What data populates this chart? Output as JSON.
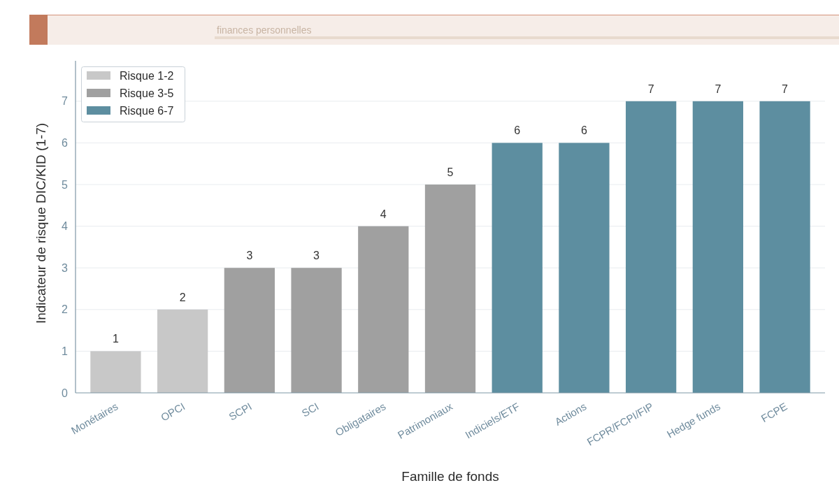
{
  "chart_data": {
    "type": "bar",
    "subtitle": "finances personnelles",
    "xlabel": "Famille de fonds",
    "ylabel": "Indicateur de risque DIC/KID (1-7)",
    "categories": [
      "Monétaires",
      "OPCI",
      "SCPI",
      "SCI",
      "Obligataires",
      "Patrimoniaux",
      "Indiciels/ETF",
      "Actions",
      "FCPR/FCPI/FIP",
      "Hedge funds",
      "FCPE"
    ],
    "series": [
      {
        "name": "Risque 1-2",
        "color": "#c8c8c8",
        "values": [
          1,
          2,
          null,
          null,
          null,
          null,
          null,
          null,
          null,
          null,
          null
        ]
      },
      {
        "name": "Risque 3-5",
        "color": "#a0a0a0",
        "values": [
          null,
          null,
          3,
          3,
          4,
          5,
          null,
          null,
          null,
          null,
          null
        ]
      },
      {
        "name": "Risque 6-7",
        "color": "#5d8ea0",
        "values": [
          null,
          null,
          null,
          null,
          null,
          null,
          6,
          6,
          7,
          7,
          7
        ]
      }
    ],
    "ylim": [
      0,
      7.97
    ],
    "yticks": [
      0,
      1,
      2,
      3,
      4,
      5,
      6,
      7
    ],
    "grid": "y",
    "legend": "top left",
    "data_labels": true
  }
}
